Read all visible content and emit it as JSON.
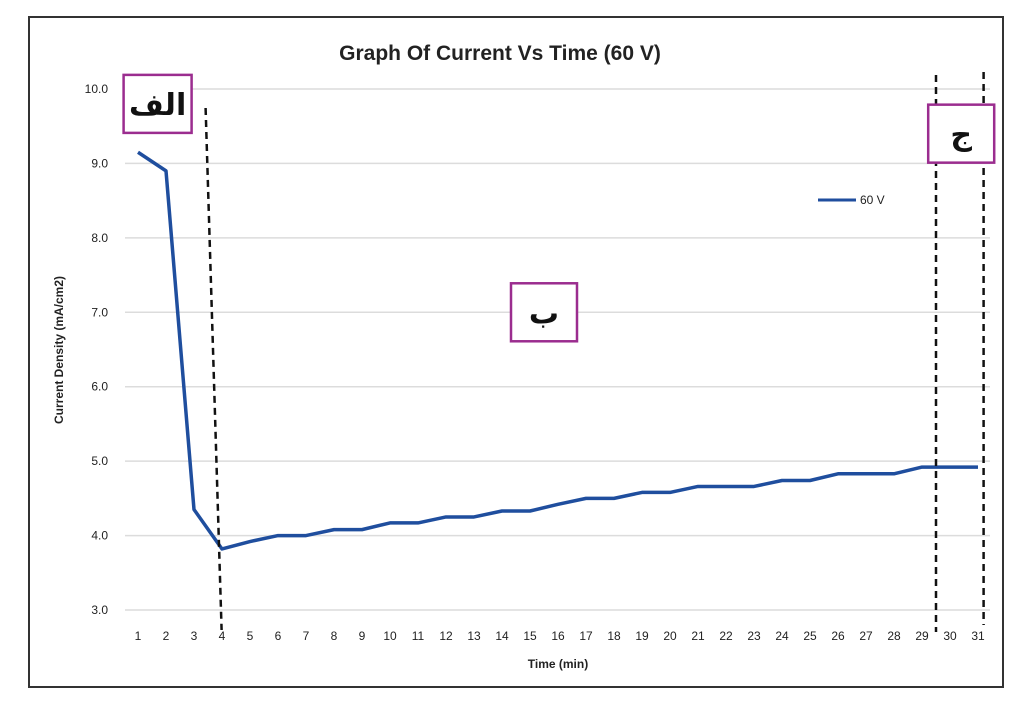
{
  "chart_data": {
    "type": "line",
    "title": "Graph Of Current Vs Time (60 V)",
    "xlabel": "Time (min)",
    "ylabel": "Current Density (mA/cm2)",
    "x": [
      1,
      2,
      3,
      4,
      5,
      6,
      7,
      8,
      9,
      10,
      11,
      12,
      13,
      14,
      15,
      16,
      17,
      18,
      19,
      20,
      21,
      22,
      23,
      24,
      25,
      26,
      27,
      28,
      29,
      30,
      31
    ],
    "series": [
      {
        "name": "60 V",
        "color": "#1f4e9e",
        "values": [
          9.15,
          8.9,
          4.35,
          3.82,
          3.92,
          4.0,
          4.0,
          4.08,
          4.08,
          4.17,
          4.17,
          4.25,
          4.25,
          4.33,
          4.33,
          4.42,
          4.5,
          4.5,
          4.58,
          4.58,
          4.66,
          4.66,
          4.66,
          4.74,
          4.74,
          4.83,
          4.83,
          4.83,
          4.92,
          4.92,
          4.92
        ]
      }
    ],
    "x_ticks": [
      "1",
      "2",
      "3",
      "4",
      "5",
      "6",
      "7",
      "8",
      "9",
      "10",
      "11",
      "12",
      "13",
      "14",
      "15",
      "16",
      "17",
      "18",
      "19",
      "20",
      "21",
      "22",
      "23",
      "24",
      "25",
      "26",
      "27",
      "28",
      "29",
      "30",
      "31"
    ],
    "y_ticks": [
      3.0,
      4.0,
      5.0,
      6.0,
      7.0,
      8.0,
      9.0,
      10.0
    ],
    "y_tick_labels": [
      "3.0",
      "4.0",
      "5.0",
      "6.0",
      "7.0",
      "8.0",
      "9.0",
      "10.0"
    ],
    "ylim": [
      3.0,
      10.0
    ],
    "xlim": [
      1,
      31
    ],
    "grid": true,
    "legend": "top-right",
    "annotations": {
      "dividers_x": [
        3.7,
        29.5,
        31.2
      ],
      "regions": [
        {
          "label": "الف",
          "at_x": 1.7,
          "at_y": 9.8
        },
        {
          "label": "ب",
          "at_x": 15.5,
          "at_y": 7.0
        },
        {
          "label": "ج",
          "at_x": 30.4,
          "at_y": 9.4
        }
      ]
    }
  }
}
